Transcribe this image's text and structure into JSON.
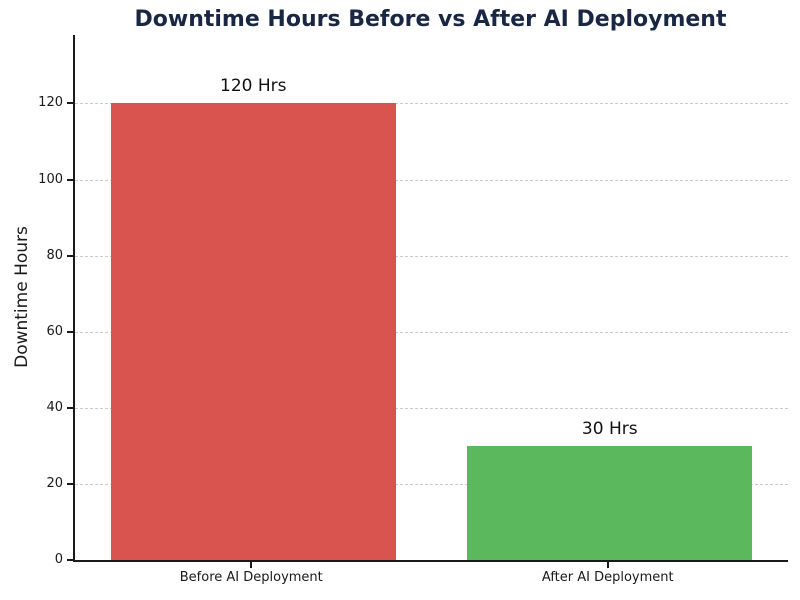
{
  "chart_data": {
    "type": "bar",
    "title": "Downtime Hours Before vs After AI Deployment",
    "xlabel": "",
    "ylabel": "Downtime Hours",
    "categories": [
      "Before AI Deployment",
      "After AI Deployment"
    ],
    "values": [
      120,
      30
    ],
    "bar_labels": [
      "120 Hrs",
      "30 Hrs"
    ],
    "bar_colors": [
      "#d9534f",
      "#5cb85c"
    ],
    "ylim": [
      0,
      138
    ],
    "yticks": [
      0,
      20,
      40,
      60,
      80,
      100,
      120
    ],
    "grid": "horizontal dashed gridlines",
    "legend": "none",
    "title_color": "#1a2744",
    "axis_color": "#1a1a1a",
    "gridline_color": "#cccccc"
  }
}
